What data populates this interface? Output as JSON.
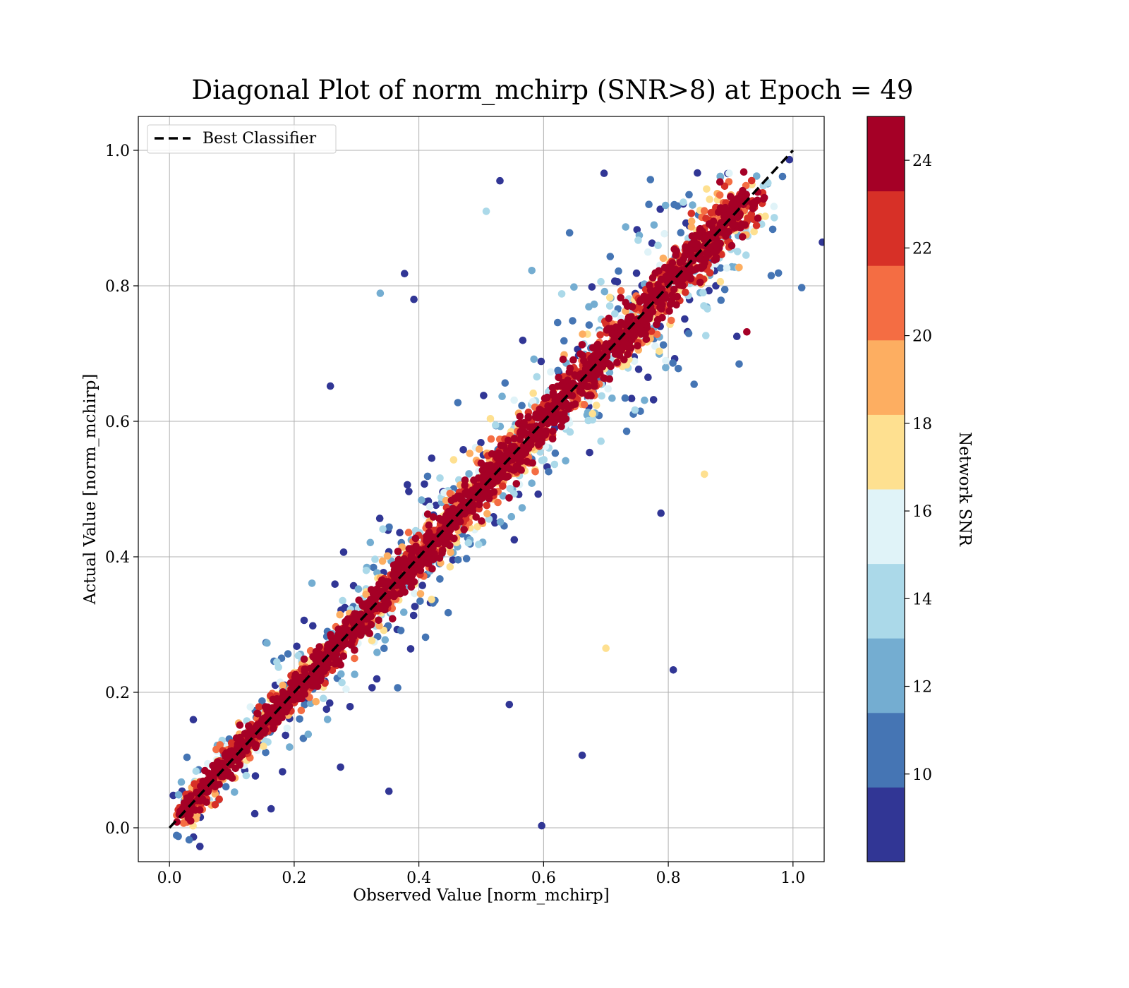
{
  "chart_data": {
    "type": "scatter",
    "title": "Diagonal Plot of norm_mchirp (SNR>8) at Epoch = 49",
    "xlabel": "Observed Value [norm_mchirp]",
    "ylabel": "Actual Value [norm_mchirp]",
    "xlim": [
      -0.05,
      1.05
    ],
    "ylim": [
      -0.05,
      1.05
    ],
    "x_ticks": [
      "0.0",
      "0.2",
      "0.4",
      "0.6",
      "0.8",
      "1.0"
    ],
    "y_ticks": [
      "0.0",
      "0.2",
      "0.4",
      "0.6",
      "0.8",
      "1.0"
    ],
    "grid": true,
    "legend": {
      "position": "top-left",
      "entries": [
        "Best Classifier"
      ]
    },
    "reference_line": {
      "name": "Best Classifier",
      "style": "dashed",
      "color": "#000000",
      "x": [
        0.0,
        1.0
      ],
      "y": [
        0.0,
        1.0
      ]
    },
    "colorbar": {
      "label": "Network SNR",
      "range": [
        8,
        25
      ],
      "ticks": [
        "10",
        "12",
        "14",
        "16",
        "18",
        "20",
        "22",
        "24"
      ],
      "colormap": "RdYlBu_r",
      "colors": [
        "#313695",
        "#4575b4",
        "#74add1",
        "#abd9e9",
        "#e0f3f8",
        "#fee090",
        "#fdae61",
        "#f46d43",
        "#d73027",
        "#a50026"
      ]
    },
    "outliers": [
      {
        "x": 0.53,
        "y": 0.955,
        "snr": 8.5
      },
      {
        "x": 0.508,
        "y": 0.91,
        "snr": 13.5
      },
      {
        "x": 0.697,
        "y": 0.966,
        "snr": 8.5
      },
      {
        "x": 0.377,
        "y": 0.818,
        "snr": 8.5
      },
      {
        "x": 0.338,
        "y": 0.789,
        "snr": 11.5
      },
      {
        "x": 0.392,
        "y": 0.78,
        "snr": 9.5
      },
      {
        "x": 0.258,
        "y": 0.652,
        "snr": 8.5
      },
      {
        "x": 0.808,
        "y": 0.233,
        "snr": 8.5
      },
      {
        "x": 0.662,
        "y": 0.107,
        "snr": 8.5
      },
      {
        "x": 0.597,
        "y": 0.003,
        "snr": 9.5
      },
      {
        "x": 0.926,
        "y": 0.732,
        "snr": 24.5
      },
      {
        "x": 0.858,
        "y": 0.522,
        "snr": 16.5
      },
      {
        "x": 0.7,
        "y": 0.265,
        "snr": 16.5
      },
      {
        "x": 0.545,
        "y": 0.182,
        "snr": 8.5
      },
      {
        "x": 0.352,
        "y": 0.054,
        "snr": 8.5
      },
      {
        "x": 0.163,
        "y": 0.028,
        "snr": 8.5
      }
    ]
  }
}
